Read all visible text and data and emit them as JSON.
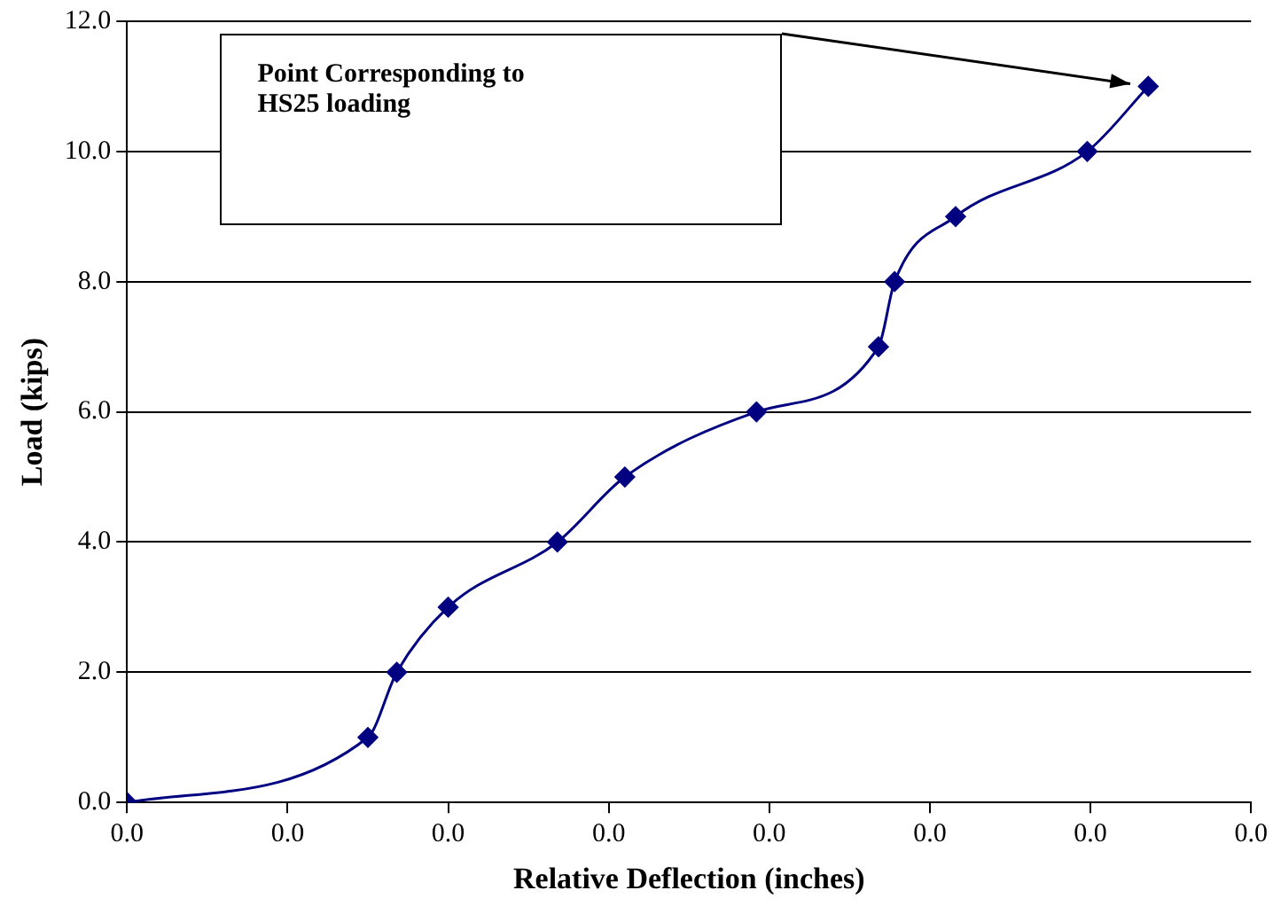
{
  "chart_data": {
    "type": "line",
    "xlabel": "Relative Deflection (inches)",
    "ylabel": "Load (kips)",
    "x": [
      0,
      0.0075,
      0.0084,
      0.01,
      0.0134,
      0.0155,
      0.0196,
      0.0234,
      0.0239,
      0.0258,
      0.0299,
      0.0318
    ],
    "series": [
      {
        "color": "#000080",
        "values": [
          0,
          1,
          2,
          3,
          4,
          5,
          6,
          7,
          8,
          9,
          10,
          11
        ]
      }
    ],
    "xlim": [
      0,
      0.035
    ],
    "xticks": [
      {
        "value": 0,
        "label": "0.0"
      },
      {
        "value": 0.005,
        "label": "0.0"
      },
      {
        "value": 0.01,
        "label": "0.0"
      },
      {
        "value": 0.015,
        "label": "0.0"
      },
      {
        "value": 0.02,
        "label": "0.0"
      },
      {
        "value": 0.025,
        "label": "0.0"
      },
      {
        "value": 0.03,
        "label": "0.0"
      },
      {
        "value": 0.035,
        "label": "0.0"
      }
    ],
    "ylim": [
      0,
      12
    ],
    "yticks": [
      {
        "value": 0,
        "label": "0.0"
      },
      {
        "value": 2,
        "label": "2.0"
      },
      {
        "value": 4,
        "label": "4.0"
      },
      {
        "value": 6,
        "label": "6.0"
      },
      {
        "value": 8,
        "label": "8.0"
      },
      {
        "value": 10,
        "label": "10.0"
      },
      {
        "value": 12,
        "label": "12.0"
      }
    ],
    "grid": "y",
    "legend": false,
    "marker": "diamond",
    "line_style": "solid",
    "annotations": [
      "Point Corresponding to HS25 loading"
    ]
  }
}
